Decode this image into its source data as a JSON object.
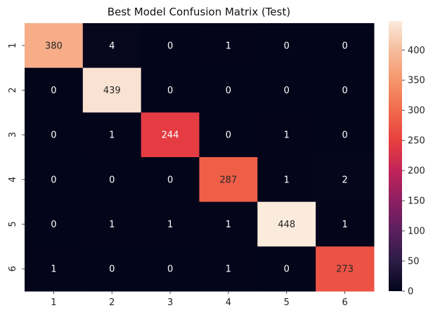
{
  "chart_data": {
    "type": "heatmap",
    "title": "Best Model Confusion Matrix (Test)",
    "xlabel": "",
    "ylabel": "",
    "x_categories": [
      "1",
      "2",
      "3",
      "4",
      "5",
      "6"
    ],
    "y_categories": [
      "1",
      "2",
      "3",
      "4",
      "5",
      "6"
    ],
    "matrix": [
      [
        380,
        4,
        0,
        1,
        0,
        0
      ],
      [
        0,
        439,
        0,
        0,
        0,
        0
      ],
      [
        0,
        1,
        244,
        0,
        1,
        0
      ],
      [
        0,
        0,
        0,
        287,
        1,
        2
      ],
      [
        0,
        1,
        1,
        1,
        448,
        1
      ],
      [
        1,
        0,
        0,
        1,
        0,
        273
      ]
    ],
    "colorbar": {
      "min": 0,
      "max": 448,
      "ticks": [
        0,
        50,
        100,
        150,
        200,
        250,
        300,
        350,
        400
      ]
    },
    "colormap": "rocket",
    "colormap_stops": [
      "#03051a",
      "#2b1c45",
      "#5a1f5e",
      "#8c1f62",
      "#c1235a",
      "#e83f3f",
      "#f1694b",
      "#f5956a",
      "#f6bb9a",
      "#faebdd"
    ]
  }
}
